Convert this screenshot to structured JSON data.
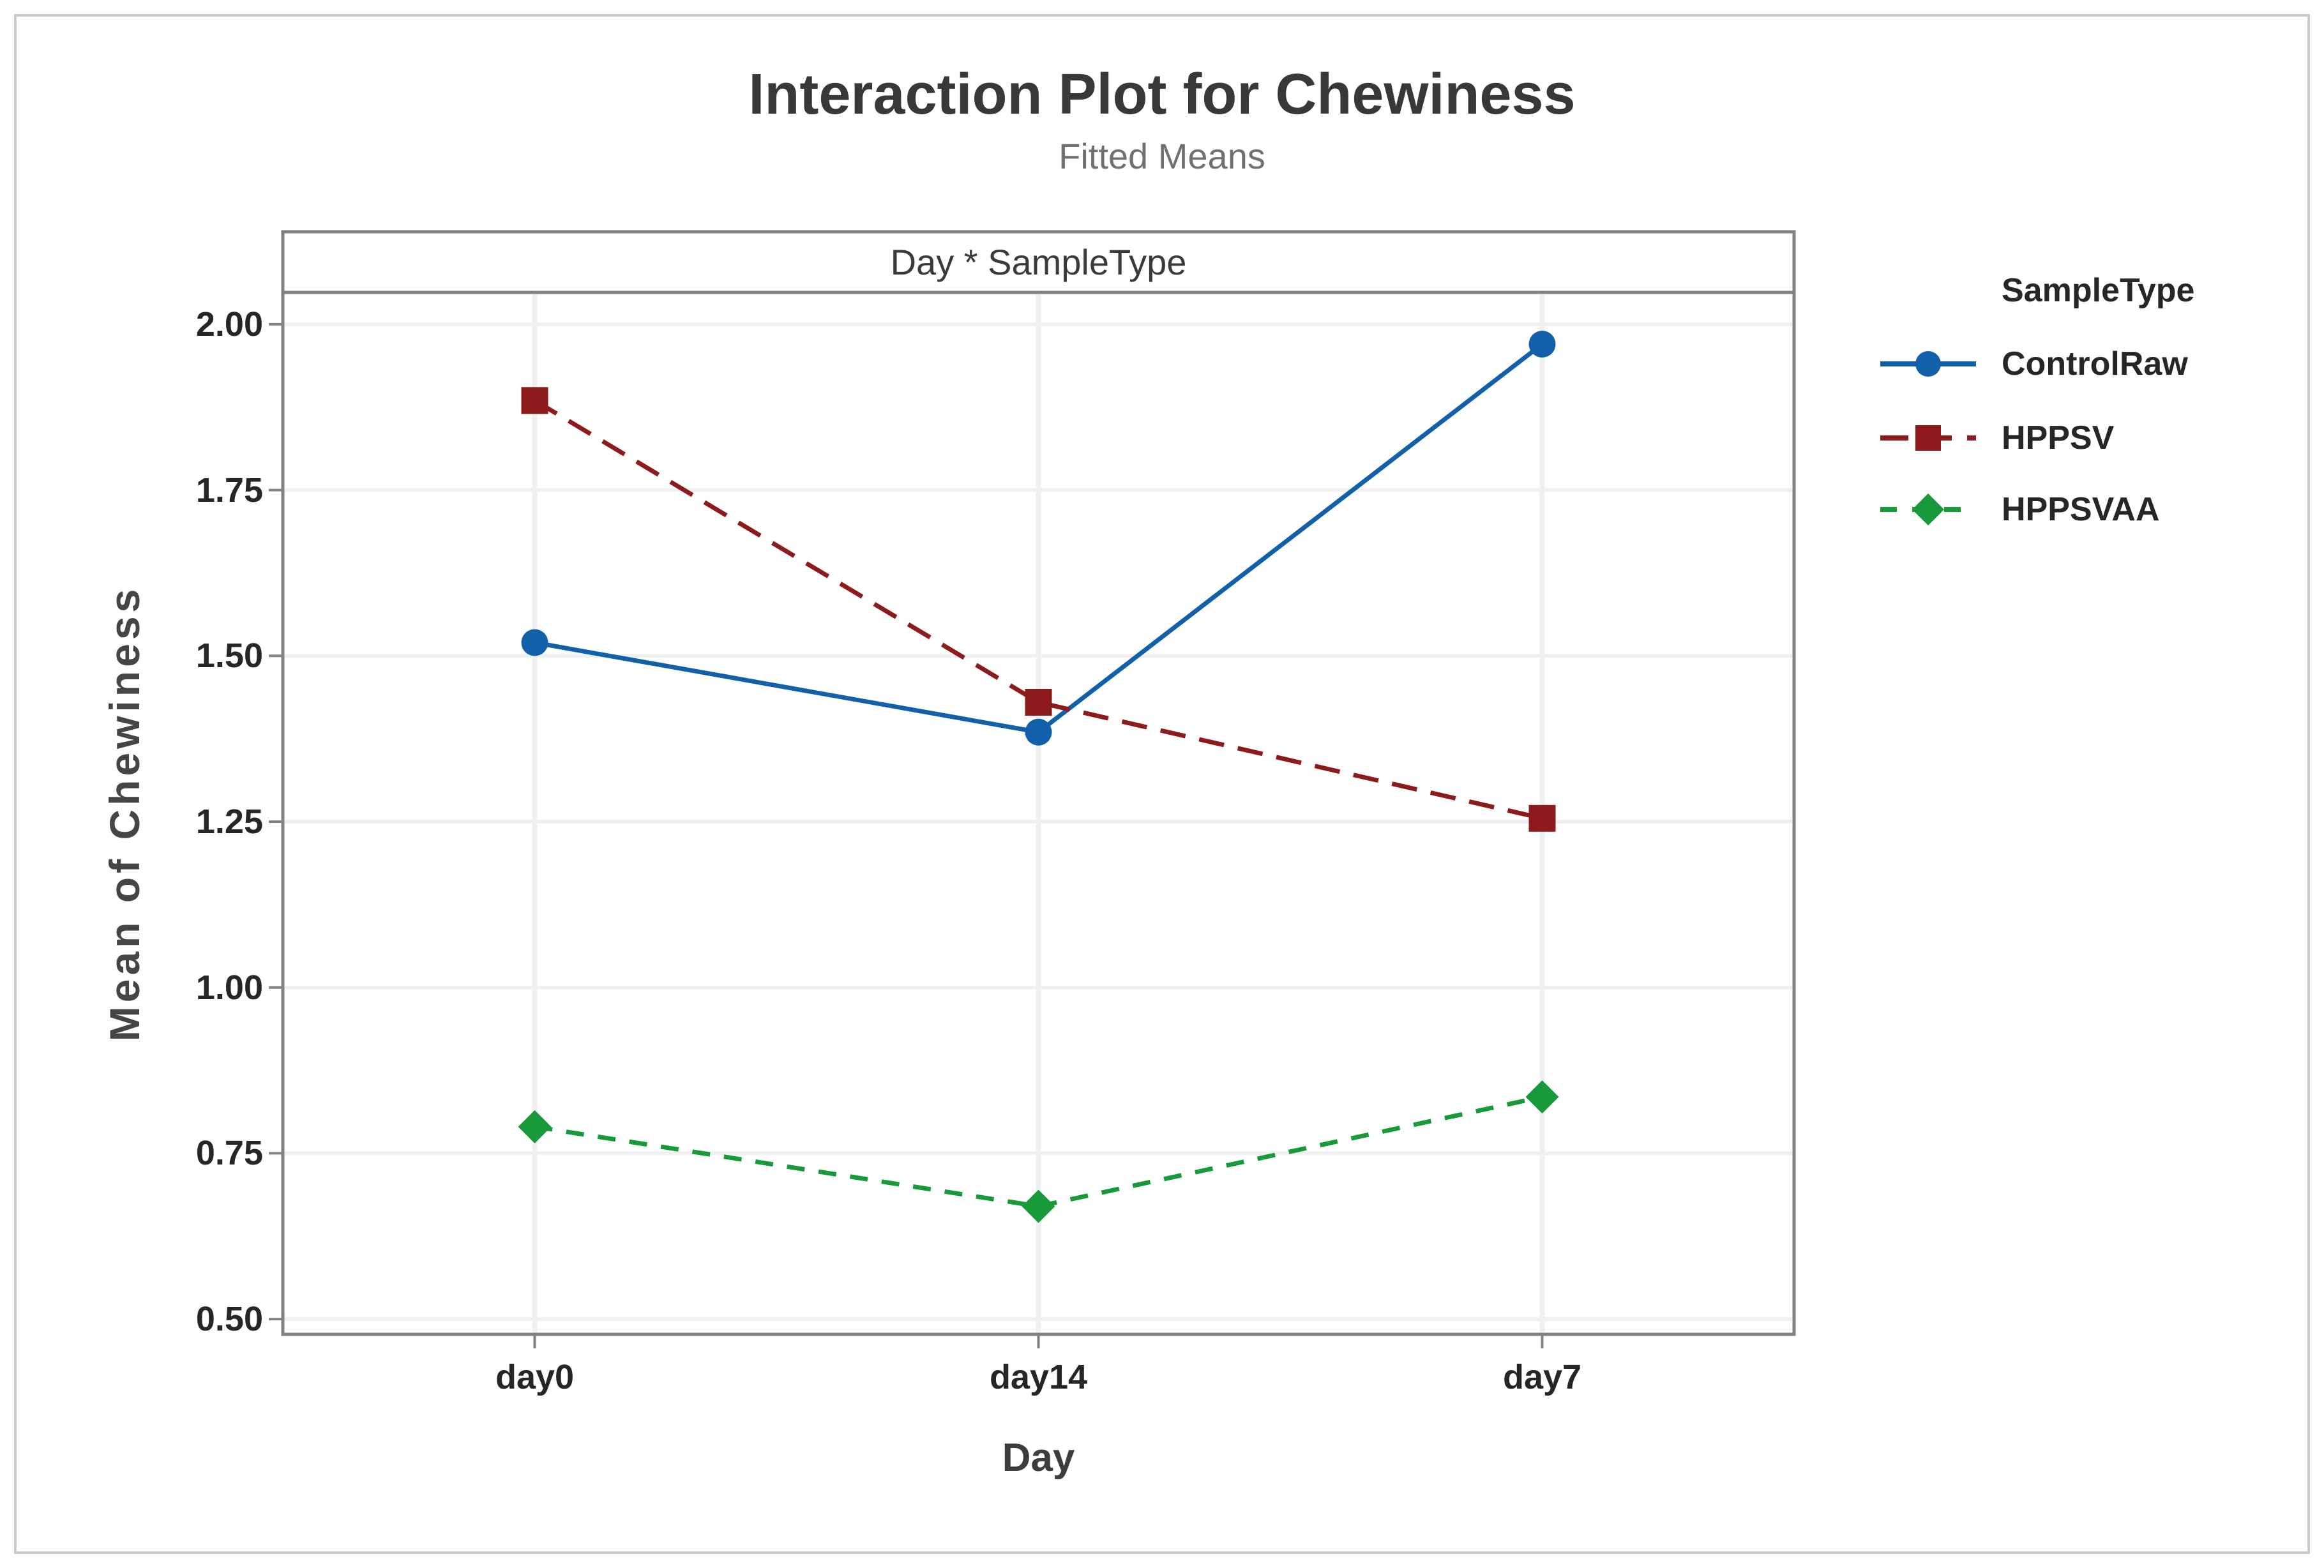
{
  "figure": {
    "title": "Interaction Plot for Chewiness",
    "subtitle": "Fitted Means",
    "panel_label": "Day * SampleType",
    "x_axis_title": "Day",
    "y_axis_title": "Mean of Chewiness",
    "legend_title": "SampleType"
  },
  "colors": {
    "series_blue": "#1360aa",
    "series_red": "#8e1b1c",
    "series_green": "#189a3a",
    "axis_border": "#828282",
    "gridline": "#f0f0f0",
    "outer_border": "#c9cdd1",
    "tick_text": "#262626",
    "title_text": "#383838",
    "subtitle_text": "#707070"
  },
  "chart_data": {
    "type": "line",
    "title": "Interaction Plot for Chewiness",
    "subtitle": "Fitted Means",
    "panel_label": "Day * SampleType",
    "xlabel": "Day",
    "ylabel": "Mean of Chewiness",
    "categories": [
      "day0",
      "day14",
      "day7"
    ],
    "series": [
      {
        "name": "ControlRaw",
        "values": [
          1.52,
          1.385,
          1.97
        ],
        "color": "#1360aa",
        "marker": "circle",
        "line_style": "solid"
      },
      {
        "name": "HPPSV",
        "values": [
          1.885,
          1.43,
          1.255
        ],
        "color": "#8e1b1c",
        "marker": "square",
        "line_style": "dashed"
      },
      {
        "name": "HPPSVAA",
        "values": [
          0.79,
          0.67,
          0.835
        ],
        "color": "#189a3a",
        "marker": "diamond",
        "line_style": "dashed"
      }
    ],
    "yticks": [
      2.0,
      1.75,
      1.5,
      1.25,
      1.0,
      0.75,
      0.5
    ],
    "ytick_labels": [
      "2.00",
      "1.75",
      "1.50",
      "1.25",
      "1.00",
      "0.75",
      "0.50"
    ],
    "ylim": [
      0.477,
      2.048
    ],
    "grid": true,
    "legend_position": "right"
  }
}
